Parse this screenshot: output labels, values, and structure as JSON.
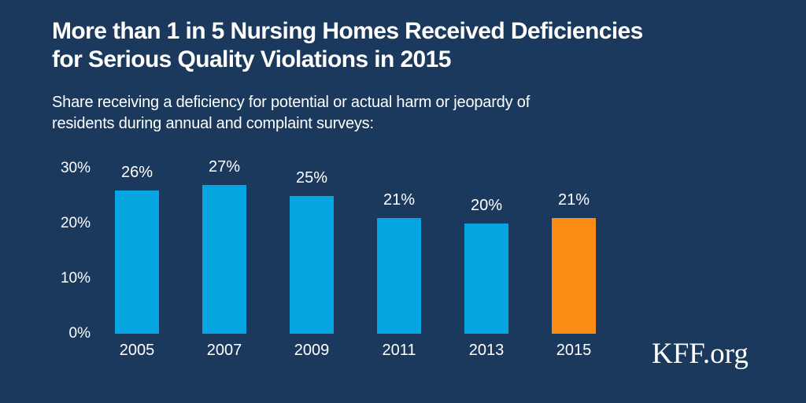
{
  "colors": {
    "background": "#1B395C",
    "text": "#FFFFFF",
    "bar_default": "#05A5E1",
    "bar_highlight": "#FB8C15"
  },
  "header": {
    "title_line1": "More than 1 in 5 Nursing Homes Received Deficiencies",
    "title_line2": "for Serious Quality Violations in 2015",
    "subtitle_line1": "Share receiving a deficiency for potential or actual harm or jeopardy of",
    "subtitle_line2": "residents during annual and complaint surveys:"
  },
  "chart_data": {
    "type": "bar",
    "title": "More than 1 in 5 Nursing Homes Received Deficiencies for Serious Quality Violations in 2015",
    "subtitle": "Share receiving a deficiency for potential or actual harm or jeopardy of residents during annual and complaint surveys:",
    "categories": [
      "2005",
      "2007",
      "2009",
      "2011",
      "2013",
      "2015"
    ],
    "values": [
      26,
      27,
      25,
      21,
      20,
      21
    ],
    "value_labels": [
      "26%",
      "27%",
      "25%",
      "21%",
      "20%",
      "21%"
    ],
    "bar_colors": [
      "#05A5E1",
      "#05A5E1",
      "#05A5E1",
      "#05A5E1",
      "#05A5E1",
      "#FB8C15"
    ],
    "default_bar_color": "#05A5E1",
    "highlight_bar_color": "#FB8C15",
    "highlighted_category": "2015",
    "xlabel": "",
    "ylabel": "",
    "ylim": [
      0,
      30
    ],
    "ytick_values": [
      0,
      10,
      20,
      30
    ],
    "ytick_labels": [
      "0%",
      "10%",
      "20%",
      "30%"
    ],
    "grid": false,
    "legend": "none"
  },
  "footer": {
    "logo": "KFF.org"
  }
}
